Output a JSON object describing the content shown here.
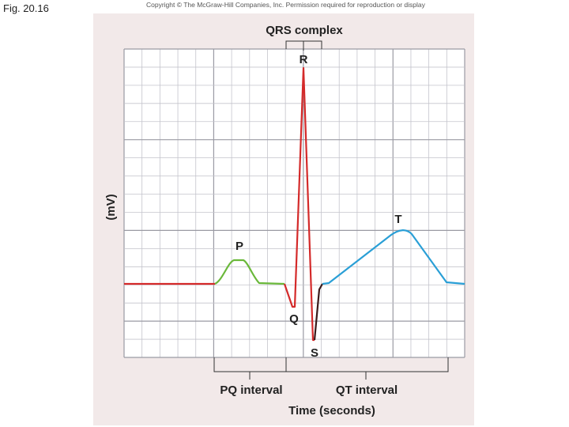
{
  "header": {
    "figure_label": "Fig. 20.16",
    "copyright": "Copyright © The McGraw-Hill Companies, Inc. Permission required for reproduction or display"
  },
  "diagram": {
    "y_axis_label": "(mV)",
    "x_axis_label": "Time (seconds)",
    "waves": {
      "P": "P",
      "Q": "Q",
      "R": "R",
      "S": "S",
      "T": "T"
    },
    "intervals": {
      "qrs_complex": "QRS complex",
      "pq_interval": "PQ interval",
      "qt_interval": "QT interval"
    },
    "colors": {
      "baseline_and_qrs": "#d42a2a",
      "p_wave": "#6ab83a",
      "s_segment": "#3a1a1a",
      "t_wave": "#2a9fd6",
      "grid_major": "#9a9aa3",
      "grid_minor": "#c4c4cc",
      "panel_background": "#f2e9e9"
    }
  }
}
